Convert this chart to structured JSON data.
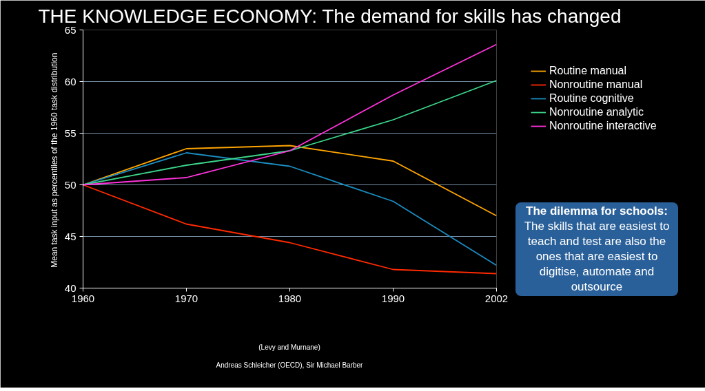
{
  "chart_data": {
    "type": "line",
    "title": "THE KNOWLEDGE ECONOMY: The demand for skills has changed",
    "ylabel": "Mean task input as percentiles of  the 1960 task distribution",
    "categories": [
      "1960",
      "1970",
      "1980",
      "1990",
      "2002"
    ],
    "series": [
      {
        "name": "Routine manual",
        "color": "#ffa500",
        "values": [
          50,
          53.5,
          53.8,
          52.3,
          47.0
        ]
      },
      {
        "name": "Nonroutine manual",
        "color": "#ff2a00",
        "values": [
          50,
          46.2,
          44.4,
          41.8,
          41.4
        ]
      },
      {
        "name": "Routine cognitive",
        "color": "#1a8cc0",
        "values": [
          50,
          53.1,
          51.8,
          48.4,
          42.2
        ]
      },
      {
        "name": "Nonroutine analytic",
        "color": "#3cd68a",
        "values": [
          50,
          51.9,
          53.3,
          56.3,
          60.1
        ]
      },
      {
        "name": "Nonroutine interactive",
        "color": "#ff33dd",
        "values": [
          50,
          50.7,
          53.3,
          58.7,
          63.6
        ]
      }
    ],
    "ylim": [
      40,
      65
    ],
    "yticks": [
      40,
      45,
      50,
      55,
      60,
      65
    ],
    "grid": "y",
    "legend": "right",
    "marker": "none",
    "line_style": "solid",
    "annotations": [
      "(Levy and Murnane)",
      "Andreas Schleicher (OECD), Sir Michael Barber",
      "The dilemma for schools:",
      "The skills that are easiest to teach and test are also the ones that are easiest to digitise, automate and outsource"
    ]
  }
}
